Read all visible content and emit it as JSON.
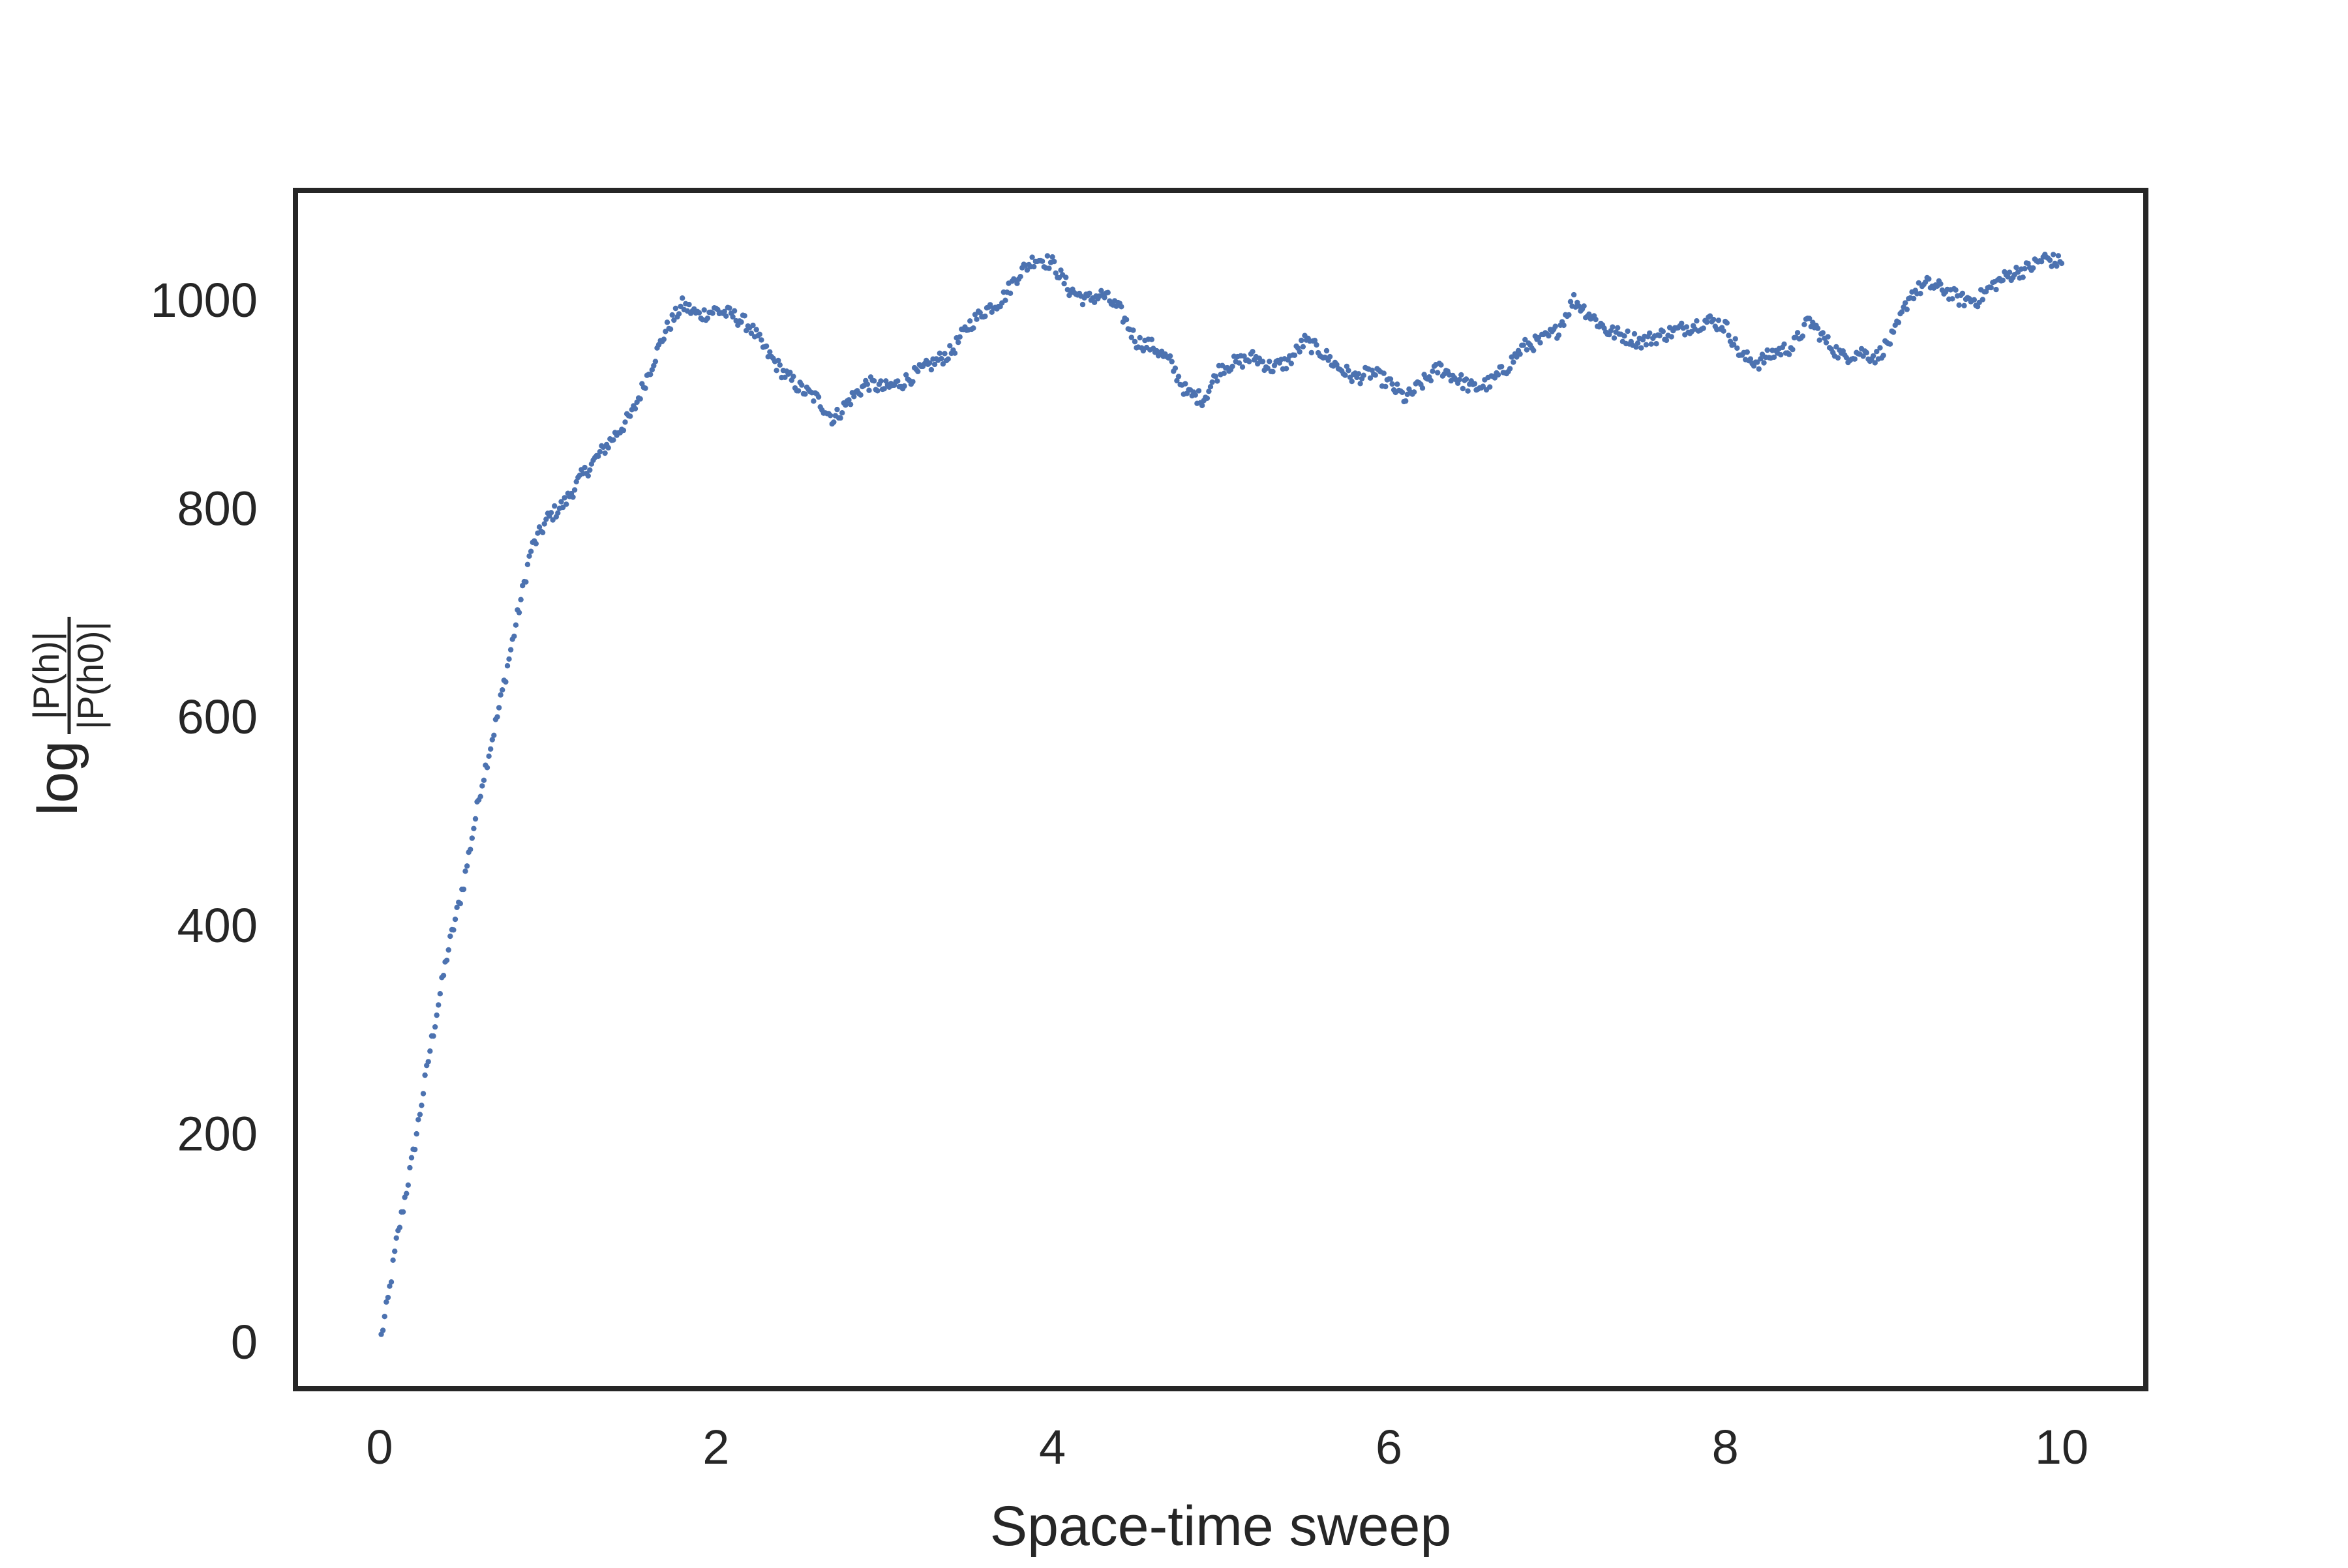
{
  "chart_data": {
    "type": "scatter",
    "title": "",
    "xlabel": "Space-time sweep",
    "ylabel": {
      "prefix": "log",
      "numerator": "|P(h)|",
      "denominator": "|P(h0)|"
    },
    "xlim": [
      -0.5,
      10.5
    ],
    "ylim": [
      -45,
      1105
    ],
    "xticks": [
      0,
      2,
      4,
      6,
      8,
      10
    ],
    "xtick_labels": [
      "0",
      "2",
      "4",
      "6",
      "8",
      "10"
    ],
    "yticks": [
      0,
      200,
      400,
      600,
      800,
      1000
    ],
    "ytick_labels": [
      "0",
      "200",
      "400",
      "600",
      "800",
      "1000"
    ],
    "grid": false,
    "legend": "none",
    "series": [
      {
        "color": "#4c72b0",
        "points_per_sweep": 100,
        "x": [
          0.01,
          0.05,
          0.1,
          0.2,
          0.3,
          0.4,
          0.5,
          0.6,
          0.7,
          0.8,
          0.9,
          1.0,
          1.1,
          1.2,
          1.3,
          1.4,
          1.5,
          1.6,
          1.7,
          1.8,
          1.9,
          2.0,
          2.1,
          2.2,
          2.3,
          2.4,
          2.5,
          2.6,
          2.7,
          2.8,
          2.9,
          3.0,
          3.1,
          3.2,
          3.3,
          3.4,
          3.5,
          3.6,
          3.7,
          3.8,
          3.9,
          4.0,
          4.1,
          4.2,
          4.3,
          4.4,
          4.5,
          4.6,
          4.7,
          4.8,
          4.9,
          5.0,
          5.1,
          5.2,
          5.3,
          5.4,
          5.5,
          5.6,
          5.7,
          5.8,
          5.9,
          6.0,
          6.1,
          6.2,
          6.3,
          6.4,
          6.5,
          6.6,
          6.7,
          6.8,
          6.9,
          7.0,
          7.1,
          7.2,
          7.3,
          7.4,
          7.5,
          7.6,
          7.7,
          7.8,
          7.9,
          8.0,
          8.1,
          8.2,
          8.3,
          8.4,
          8.5,
          8.6,
          8.7,
          8.8,
          8.9,
          9.0,
          9.1,
          9.2,
          9.3,
          9.4,
          9.5,
          9.6,
          9.7,
          9.8,
          9.9,
          10.0
        ],
        "y": [
          5,
          40,
          95,
          180,
          280,
          370,
          440,
          530,
          600,
          680,
          760,
          790,
          805,
          830,
          850,
          870,
          890,
          930,
          970,
          995,
          985,
          990,
          985,
          975,
          950,
          930,
          915,
          905,
          885,
          905,
          920,
          915,
          920,
          930,
          940,
          950,
          975,
          990,
          1000,
          1025,
          1040,
          1035,
          1010,
          1000,
          1005,
          990,
          960,
          955,
          940,
          910,
          905,
          935,
          940,
          945,
          935,
          940,
          960,
          950,
          935,
          925,
          930,
          920,
          905,
          920,
          935,
          925,
          915,
          920,
          935,
          955,
          960,
          970,
          1000,
          985,
          970,
          965,
          960,
          965,
          970,
          975,
          980,
          975,
          945,
          940,
          950,
          955,
          980,
          960,
          945,
          950,
          945,
          965,
          1005,
          1015,
          1010,
          1000,
          1000,
          1015,
          1025,
          1030,
          1040,
          1035
        ]
      }
    ]
  }
}
